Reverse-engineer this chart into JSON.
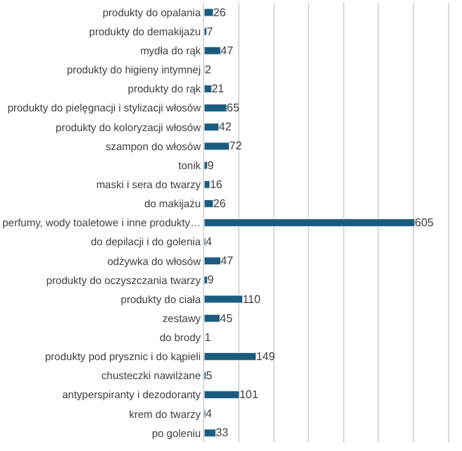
{
  "chart_data": {
    "type": "bar",
    "orientation": "horizontal",
    "categories": [
      "produkty do opalania",
      "produkty do demakijażu",
      "mydła do rąk",
      "produkty do higieny intymnej",
      "produkty do rąk",
      "produkty do pielęgnacji i stylizacji włosów",
      "produkty do koloryzacji włosów",
      "szampon do włosów",
      "tonik",
      "maski i sera do twarzy",
      "do makijażu",
      "perfumy, wody toaletowe i inne produkty…",
      "do depilacji i do golenia",
      "odżywka do włosów",
      "produkty do oczyszczania twarzy",
      "produkty do ciała",
      "zestawy",
      "do brody",
      "produkty pod prysznic i do kąpieli",
      "chusteczki nawilżane",
      "antyperspiranty i dezodoranty",
      "krem do twarzy",
      "po goleniu"
    ],
    "values": [
      26,
      7,
      47,
      2,
      21,
      65,
      42,
      72,
      9,
      16,
      26,
      605,
      4,
      47,
      9,
      110,
      45,
      1,
      149,
      5,
      101,
      4,
      33
    ],
    "color": "#1b5b7e",
    "data_labels": true,
    "xlim": [
      0,
      700
    ],
    "xticks": [
      {
        "value": 100,
        "label": null
      },
      {
        "value": 200,
        "label": null
      },
      {
        "value": 300,
        "label": null
      },
      {
        "value": 400,
        "label": null
      },
      {
        "value": 500,
        "label": null
      },
      {
        "value": 600,
        "label": null
      }
    ],
    "grid": "x",
    "tick_labels": "y",
    "legend": false
  }
}
